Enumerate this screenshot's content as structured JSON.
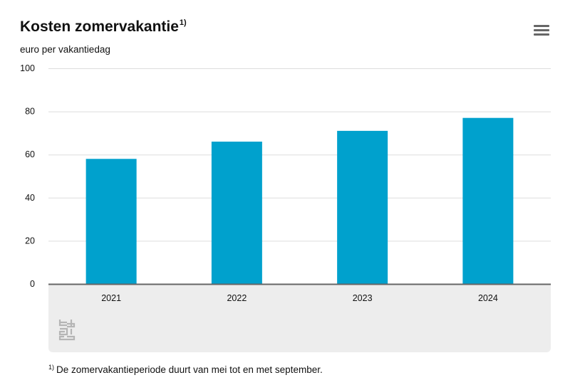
{
  "header": {
    "title": "Kosten zomervakantie",
    "title_sup": "1)",
    "unit": "euro per vakantiedag"
  },
  "menu_icon": "hamburger-menu-icon",
  "logo_icon": "cbs-logo-icon",
  "footnote": {
    "marker": "1)",
    "text": "De zomervakantieperiode duurt van mei tot en met september."
  },
  "colors": {
    "bar": "#00a1cd",
    "grid": "#dddddd",
    "axis": "#666666",
    "panel": "#ededed"
  },
  "chart_data": {
    "type": "bar",
    "categories": [
      "2021",
      "2022",
      "2023",
      "2024"
    ],
    "values": [
      58,
      66,
      71,
      77
    ],
    "title": "Kosten zomervakantie",
    "ylabel": "euro per vakantiedag",
    "xlabel": "",
    "ylim": [
      0,
      100
    ],
    "yticks": [
      0,
      20,
      40,
      60,
      80,
      100
    ],
    "grid": true,
    "legend": "none"
  }
}
